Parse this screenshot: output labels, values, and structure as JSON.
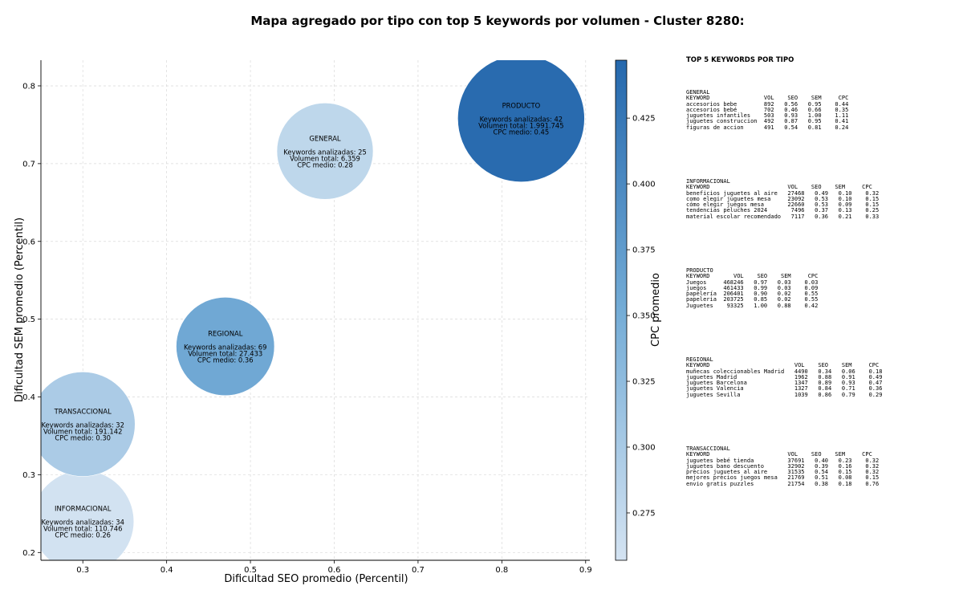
{
  "chart_data": {
    "type": "scatter",
    "title": "Mapa agregado por tipo con top 5 keywords por volumen - Cluster 8280:",
    "xlabel": "Dificultad SEO promedio (Percentil)",
    "ylabel": "Dificultad SEM promedio (Percentil)",
    "xlim": [
      0.25,
      0.905
    ],
    "ylim": [
      0.19,
      0.833
    ],
    "xticks": [
      "0.3",
      "0.4",
      "0.5",
      "0.6",
      "0.7",
      "0.8",
      "0.9"
    ],
    "yticks": [
      "0.2",
      "0.3",
      "0.4",
      "0.5",
      "0.6",
      "0.7",
      "0.8"
    ],
    "grid": true,
    "colorbar": {
      "label": "CPC promedio",
      "min": 0.257,
      "max": 0.447,
      "ticks": [
        "0.275",
        "0.300",
        "0.325",
        "0.350",
        "0.375",
        "0.400",
        "0.425"
      ],
      "color_low": "#d4e3f2",
      "color_high": "#2568ad"
    },
    "points": [
      {
        "label": "GENERAL",
        "x": 0.589,
        "y": 0.716,
        "size": 6359,
        "cpc": 0.28,
        "keywords_text": "Keywords analizadas: 25",
        "volume_text": "Volumen total: 6.359",
        "cpc_text": "CPC medio: 0.28"
      },
      {
        "label": "INFORMACIONAL",
        "x": 0.3,
        "y": 0.24,
        "size": 110746,
        "cpc": 0.26,
        "keywords_text": "Keywords analizadas: 34",
        "volume_text": "Volumen total: 110.746",
        "cpc_text": "CPC medio: 0.26"
      },
      {
        "label": "PRODUCTO",
        "x": 0.823,
        "y": 0.758,
        "size": 1991745,
        "cpc": 0.45,
        "keywords_text": "Keywords analizadas: 42",
        "volume_text": "Volumen total: 1.991.745",
        "cpc_text": "CPC medio: 0.45"
      },
      {
        "label": "REGIONAL",
        "x": 0.47,
        "y": 0.465,
        "size": 27433,
        "cpc": 0.36,
        "keywords_text": "Keywords analizadas: 69",
        "volume_text": "Volumen total: 27.433",
        "cpc_text": "CPC medio: 0.36"
      },
      {
        "label": "TRANSACCIONAL",
        "x": 0.3,
        "y": 0.365,
        "size": 191142,
        "cpc": 0.3,
        "keywords_text": "Keywords analizadas: 32",
        "volume_text": "Volumen total: 191.142",
        "cpc_text": "CPC medio: 0.30"
      }
    ]
  },
  "panel": {
    "title": "TOP 5 KEYWORDS POR TIPO",
    "blocks": [
      "GENERAL\nKEYWORD                VOL    SEO    SEM     CPC\naccesorios bebe        892   0.56   0.95    0.44\naccesorios bebé        702   0.46   0.66    0.35\njuguetes infantiles    503   0.93   1.00    1.11\njuguetes construccion  492   0.87   0.95    0.41\nfiguras de accion      491   0.54   0.81    0.24",
      "INFORMACIONAL\nKEYWORD                       VOL    SEO    SEM     CPC\nbeneficios juguetes al aire   27468   0.49   0.10    0.32\ncomo elegir juguetes mesa     23092   0.53   0.10    0.15\ncómo elegir juegos mesa       22660   0.53   0.09    0.15\ntendencias peluches 2024       7496   0.37   0.13    0.25\nmaterial escolar recomendado   7117   0.36   0.21    0.33",
      "PRODUCTO\nKEYWORD       VOL    SEO    SEM     CPC\nJuegos     468246   0.97   0.03    0.03\njuegos     461433   0.99   0.03    0.09\npapelería  206401   0.90   0.02    0.55\npapeleria  203725   0.85   0.02    0.55\nJuguetes    93325   1.00   0.88    0.42",
      "REGIONAL\nKEYWORD                         VOL    SEO    SEM     CPC\nmuñecas coleccionables Madrid   4490   0.34   0.06    0.18\njuguetes Madrid                 1962   0.88   0.91    0.49\njuguetes Barcelona              1347   0.89   0.93    0.47\njuguetes Valencia               1327   0.84   0.71    0.36\njuguetes Sevilla                1039   0.86   0.79    0.29",
      "TRANSACCIONAL\nKEYWORD                       VOL    SEO    SEM     CPC\njuguetes bebé tienda          37691   0.40   0.23    0.32\njuguetes bano descuento       32902   0.39   0.16    0.32\nprecios juguetes al aire      31535   0.54   0.15    0.32\nmejores precios juegos mesa   21769   0.51   0.08    0.15\nenvio gratis puzzles          21754   0.38   0.18    0.76"
    ]
  }
}
